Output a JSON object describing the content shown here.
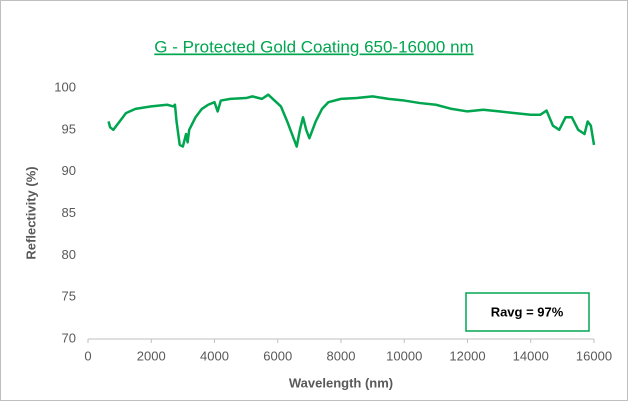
{
  "chart_data": {
    "type": "line",
    "title": "G - Protected Gold Coating 650-16000 nm",
    "x_label": "Wavelength (nm)",
    "y_label": "Reflectivity (%)",
    "annotation": "Ravg = 97%",
    "x": [
      650,
      700,
      800,
      1000,
      1200,
      1500,
      2000,
      2500,
      2700,
      2750,
      2800,
      2900,
      3000,
      3100,
      3150,
      3200,
      3400,
      3600,
      3800,
      4000,
      4100,
      4200,
      4500,
      5000,
      5200,
      5500,
      5700,
      5900,
      6100,
      6300,
      6500,
      6600,
      6700,
      6800,
      6900,
      7000,
      7200,
      7400,
      7600,
      8000,
      8500,
      9000,
      9500,
      10000,
      10500,
      11000,
      11500,
      12000,
      12500,
      13000,
      13500,
      14000,
      14300,
      14500,
      14700,
      14900,
      15100,
      15300,
      15500,
      15700,
      15800,
      15900,
      16000
    ],
    "series": [
      {
        "name": "Reflectivity",
        "color": "#00a550",
        "values": [
          96,
          95.3,
          95.0,
          96.0,
          97.0,
          97.5,
          97.8,
          98.0,
          97.8,
          98.0,
          96,
          93.2,
          93.0,
          94.5,
          93.5,
          95.0,
          96.5,
          97.5,
          98.0,
          98.3,
          97.2,
          98.5,
          98.7,
          98.8,
          99.0,
          98.7,
          99.2,
          98.5,
          97.8,
          96.0,
          94.0,
          93.0,
          95.0,
          96.5,
          95.0,
          94.0,
          96.0,
          97.5,
          98.3,
          98.7,
          98.8,
          99.0,
          98.7,
          98.5,
          98.2,
          98.0,
          97.5,
          97.2,
          97.4,
          97.2,
          97.0,
          96.8,
          96.8,
          97.3,
          95.5,
          95.0,
          96.5,
          96.5,
          95.0,
          94.5,
          96.0,
          95.5,
          93.2
        ]
      }
    ],
    "xlim": [
      0,
      16000
    ],
    "xticks": [
      0,
      2000,
      4000,
      6000,
      8000,
      10000,
      12000,
      14000,
      16000
    ],
    "ylim": [
      70,
      100
    ],
    "yticks": [
      70,
      75,
      80,
      85,
      90,
      95,
      100
    ],
    "grid": false
  }
}
